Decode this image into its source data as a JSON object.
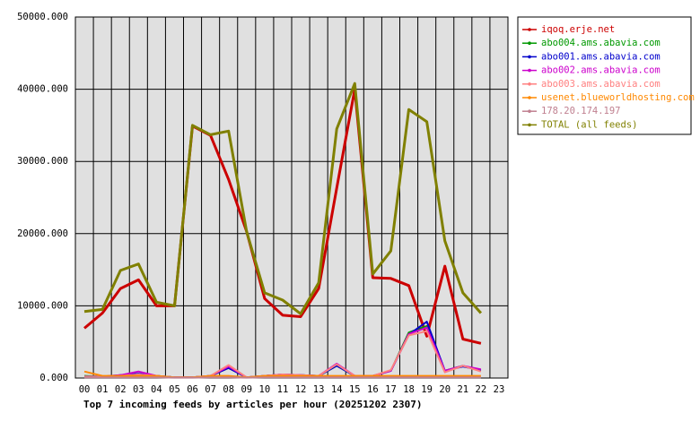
{
  "chart_data": {
    "type": "line",
    "title": "Top 7 incoming feeds by articles per hour (20251202 2307)",
    "categories": [
      "00",
      "01",
      "02",
      "03",
      "04",
      "05",
      "06",
      "07",
      "08",
      "09",
      "10",
      "11",
      "12",
      "13",
      "14",
      "15",
      "16",
      "17",
      "18",
      "19",
      "20",
      "21",
      "22",
      "23"
    ],
    "ylim": [
      0,
      50000
    ],
    "yticks": [
      {
        "value": 0,
        "label": "0.000"
      },
      {
        "value": 10000,
        "label": "10000.000"
      },
      {
        "value": 20000,
        "label": "20000.000"
      },
      {
        "value": 30000,
        "label": "30000.000"
      },
      {
        "value": 40000,
        "label": "40000.000"
      },
      {
        "value": 50000,
        "label": "50000.000"
      }
    ],
    "grid": true,
    "legend": "right",
    "series": [
      {
        "name": "iqoq.erje.net",
        "color": "#cc0000",
        "values": [
          6900,
          9000,
          12400,
          13600,
          10000,
          10000,
          34900,
          33600,
          27500,
          20300,
          11000,
          8700,
          8500,
          12400,
          26300,
          40000,
          13900,
          13800,
          12800,
          5800,
          15500,
          5400,
          4800,
          null
        ]
      },
      {
        "name": "abo004.ams.abavia.com",
        "color": "#009900",
        "values": [
          300,
          200,
          300,
          400,
          300,
          100,
          100,
          300,
          1400,
          100,
          300,
          500,
          400,
          300,
          1700,
          300,
          300,
          1000,
          6300,
          7200,
          1000,
          1700,
          1000,
          null
        ]
      },
      {
        "name": "abo001.ams.abavia.com",
        "color": "#0000cc",
        "values": [
          200,
          200,
          400,
          600,
          300,
          100,
          100,
          300,
          1400,
          100,
          300,
          500,
          400,
          300,
          1700,
          300,
          300,
          1000,
          6000,
          7800,
          1000,
          1600,
          1100,
          null
        ]
      },
      {
        "name": "abo002.ams.abavia.com",
        "color": "#cc00cc",
        "values": [
          200,
          200,
          400,
          900,
          300,
          100,
          100,
          300,
          1600,
          100,
          300,
          500,
          400,
          300,
          2000,
          300,
          300,
          1000,
          6100,
          7000,
          1000,
          1700,
          1200,
          null
        ]
      },
      {
        "name": "abo003.ams.abavia.com",
        "color": "#ff8080",
        "values": [
          200,
          200,
          300,
          500,
          300,
          100,
          100,
          300,
          1800,
          100,
          300,
          500,
          400,
          300,
          1900,
          300,
          300,
          1100,
          5900,
          6500,
          800,
          1700,
          900,
          null
        ]
      },
      {
        "name": "usenet.blueworldhosting.com",
        "color": "#ff8800",
        "values": [
          900,
          300,
          300,
          300,
          300,
          100,
          100,
          300,
          300,
          100,
          300,
          300,
          300,
          300,
          300,
          300,
          300,
          300,
          300,
          300,
          300,
          300,
          300,
          null
        ]
      },
      {
        "name": "178.20.174.197",
        "color": "#c08090",
        "values": [
          100,
          100,
          100,
          100,
          100,
          50,
          50,
          100,
          100,
          50,
          100,
          100,
          100,
          100,
          100,
          100,
          100,
          100,
          100,
          100,
          100,
          100,
          100,
          null
        ]
      },
      {
        "name": "TOTAL (all feeds)",
        "color": "#808000",
        "values": [
          9200,
          9500,
          14900,
          15800,
          10500,
          10000,
          35000,
          33700,
          34200,
          20300,
          11800,
          10800,
          8900,
          13200,
          34500,
          40800,
          14400,
          17600,
          37200,
          35500,
          19000,
          11800,
          9000,
          null
        ]
      }
    ]
  }
}
